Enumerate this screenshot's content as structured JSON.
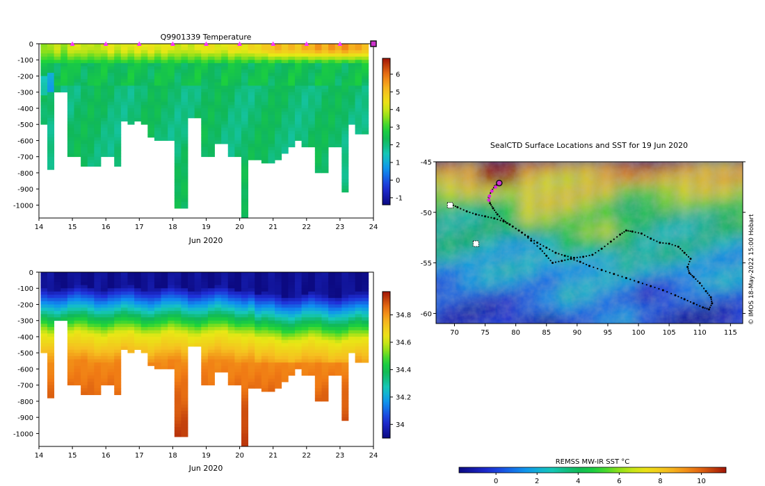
{
  "chart_data": [
    {
      "id": "temperature-section",
      "type": "heatmap",
      "title": "Q9901339  Temperature",
      "xlabel": "Jun 2020",
      "x_ticks": [
        "14",
        "15",
        "16",
        "17",
        "18",
        "19",
        "20",
        "21",
        "22",
        "23",
        "24"
      ],
      "xlim": [
        14,
        24
      ],
      "y_ticks": [
        "0",
        "-100",
        "-200",
        "-300",
        "-400",
        "-500",
        "-600",
        "-700",
        "-800",
        "-900",
        "-1000"
      ],
      "ylim": [
        -1080,
        0
      ],
      "colorbar": {
        "ticks": [
          "-1",
          "0",
          "1",
          "2",
          "3",
          "4",
          "5",
          "6"
        ],
        "range": [
          -1.4,
          6.9
        ]
      },
      "markers_days": [
        15,
        16,
        17,
        18,
        19,
        20,
        21,
        22,
        23
      ],
      "current_marker_day": 24,
      "profile_times": [
        14.15,
        14.35,
        14.55,
        14.75,
        14.95,
        15.15,
        15.35,
        15.55,
        15.75,
        15.95,
        16.15,
        16.35,
        16.55,
        16.75,
        16.95,
        17.15,
        17.35,
        17.55,
        17.75,
        17.95,
        18.15,
        18.35,
        18.55,
        18.75,
        18.95,
        19.15,
        19.35,
        19.55,
        19.75,
        19.95,
        20.15,
        20.35,
        20.55,
        20.75,
        20.95,
        21.15,
        21.35,
        21.55,
        21.75,
        21.95,
        22.15,
        22.35,
        22.55,
        22.75,
        22.95,
        23.15,
        23.35,
        23.55,
        23.75,
        23.95
      ],
      "profile_max_depth": [
        500,
        780,
        300,
        300,
        690,
        690,
        760,
        760,
        760,
        700,
        700,
        760,
        470,
        500,
        480,
        500,
        580,
        600,
        600,
        600,
        1010,
        1010,
        460,
        460,
        690,
        690,
        610,
        610,
        690,
        690,
        1080,
        710,
        710,
        740,
        740,
        710,
        680,
        640,
        590,
        640,
        640,
        800,
        800,
        640,
        640,
        920,
        500,
        550,
        550,
        0
      ],
      "profile_surface_temp": [
        3.5,
        3.8,
        4.0,
        3.6,
        4.0,
        4.2,
        3.9,
        4.0,
        3.8,
        4.1,
        4.3,
        4.0,
        4.2,
        4.1,
        4.3,
        4.2,
        4.4,
        4.1,
        4.3,
        4.2,
        4.0,
        4.1,
        4.0,
        4.2,
        4.3,
        4.4,
        4.2,
        4.1,
        4.5,
        4.4,
        4.3,
        4.6,
        4.6,
        4.8,
        5.0,
        5.2,
        5.0,
        5.1,
        5.0,
        5.2,
        5.3,
        5.5,
        5.3,
        5.5,
        5.4,
        5.6,
        5.4,
        5.3,
        5.2,
        5.0
      ],
      "colors": {
        "marker": "#ff33ff",
        "current_marker_fill": "#cc33cc",
        "current_marker_stroke": "#111111"
      }
    },
    {
      "id": "salinity-section",
      "type": "heatmap",
      "title": "",
      "xlabel": "Jun 2020",
      "x_ticks": [
        "14",
        "15",
        "16",
        "17",
        "18",
        "19",
        "20",
        "21",
        "22",
        "23",
        "24"
      ],
      "xlim": [
        14,
        24
      ],
      "y_ticks": [
        "0",
        "-100",
        "-200",
        "-300",
        "-400",
        "-500",
        "-600",
        "-700",
        "-800",
        "-900",
        "-1000"
      ],
      "ylim": [
        -1080,
        0
      ],
      "colorbar": {
        "ticks": [
          "34",
          "34.2",
          "34.4",
          "34.6",
          "34.8"
        ],
        "range": [
          33.9,
          34.97
        ]
      },
      "profile_times": [
        14.15,
        14.35,
        14.55,
        14.75,
        14.95,
        15.15,
        15.35,
        15.55,
        15.75,
        15.95,
        16.15,
        16.35,
        16.55,
        16.75,
        16.95,
        17.15,
        17.35,
        17.55,
        17.75,
        17.95,
        18.15,
        18.35,
        18.55,
        18.75,
        18.95,
        19.15,
        19.35,
        19.55,
        19.75,
        19.95,
        20.15,
        20.35,
        20.55,
        20.75,
        20.95,
        21.15,
        21.35,
        21.55,
        21.75,
        21.95,
        22.15,
        22.35,
        22.55,
        22.75,
        22.95,
        23.15,
        23.35,
        23.55,
        23.75,
        23.95
      ],
      "profile_max_depth": [
        500,
        780,
        300,
        300,
        690,
        690,
        760,
        760,
        760,
        700,
        700,
        760,
        470,
        500,
        480,
        500,
        580,
        600,
        600,
        600,
        1010,
        1010,
        460,
        460,
        690,
        690,
        610,
        610,
        690,
        690,
        1080,
        710,
        710,
        740,
        740,
        710,
        680,
        640,
        590,
        640,
        640,
        800,
        800,
        640,
        640,
        920,
        500,
        550,
        550,
        0
      ]
    },
    {
      "id": "sst-map",
      "type": "heatmap",
      "title": "SealCTD Surface Locations and SST for 19 Jun 2020",
      "x_ticks": [
        "70",
        "75",
        "80",
        "85",
        "90",
        "95",
        "100",
        "105",
        "110",
        "115"
      ],
      "xlim": [
        67,
        117
      ],
      "y_ticks": [
        "-45",
        "-50",
        "-55",
        "-60"
      ],
      "ylim": [
        -61,
        -45
      ],
      "credit": "© IMOS 18-May-2022 15:00 Hobart",
      "track_lon": [
        77.3,
        76.6,
        76.0,
        75.6,
        75.8,
        76.3,
        77.0,
        78.0,
        79.0,
        80.5,
        82.0,
        83.5,
        85.0,
        86.5,
        88.0,
        89.5,
        91.0,
        92.5,
        94.0,
        95.5,
        97.0,
        98.0,
        99.0,
        100.5,
        102.0,
        103.5,
        105.0,
        106.5,
        107.5,
        108.5,
        108.0,
        108.3,
        109.0,
        110.0,
        111.0,
        111.8,
        112.0,
        111.5,
        110.5,
        109.0,
        107.5,
        106.0,
        104.0,
        102.0,
        100.0,
        98.0,
        96.0,
        94.0,
        92.0,
        90.5,
        89.0,
        87.5,
        86.0,
        85.0,
        84.0,
        82.5,
        81.0,
        79.5,
        78.0,
        76.5,
        75.0,
        73.5,
        72.0,
        70.5,
        69.5,
        69.0
      ],
      "track_lat": [
        -47.1,
        -47.4,
        -47.9,
        -48.5,
        -49.1,
        -49.6,
        -50.2,
        -50.8,
        -51.2,
        -51.8,
        -52.4,
        -53.0,
        -53.5,
        -54.0,
        -54.3,
        -54.5,
        -54.4,
        -54.2,
        -53.6,
        -52.9,
        -52.2,
        -51.8,
        -51.9,
        -52.1,
        -52.6,
        -53.0,
        -53.1,
        -53.4,
        -54.0,
        -54.6,
        -55.4,
        -56.0,
        -56.4,
        -57.0,
        -57.8,
        -58.4,
        -59.0,
        -59.6,
        -59.4,
        -59.0,
        -58.6,
        -58.2,
        -57.7,
        -57.3,
        -56.9,
        -56.5,
        -56.1,
        -55.7,
        -55.3,
        -54.9,
        -54.6,
        -54.8,
        -55.0,
        -54.3,
        -53.6,
        -52.8,
        -52.0,
        -51.4,
        -50.9,
        -50.6,
        -50.4,
        -50.2,
        -49.9,
        -49.5,
        -49.2,
        -49.4
      ],
      "recent_lon": [
        77.3,
        76.7,
        76.1,
        75.7,
        75.6
      ],
      "recent_lat": [
        -47.1,
        -47.5,
        -47.9,
        -48.4,
        -48.8
      ],
      "current_position": {
        "lon": 77.3,
        "lat": -47.1
      },
      "island_positions": [
        {
          "lon": 69.3,
          "lat": -49.3
        },
        {
          "lon": 73.5,
          "lat": -53.1
        }
      ],
      "colors": {
        "track": "#000000",
        "recent_track": "#dd22dd",
        "current": "#cc33cc"
      }
    },
    {
      "id": "sst-colorbar",
      "type": "heatmap",
      "title": "REMSS MW-IR SST °C",
      "ticks": [
        "0",
        "2",
        "4",
        "6",
        "8",
        "10"
      ],
      "range": [
        -1.8,
        11.2
      ]
    }
  ]
}
